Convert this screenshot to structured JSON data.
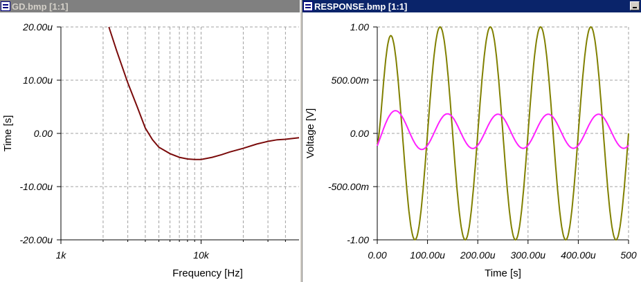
{
  "windows": [
    {
      "title": "GD.bmp [1:1]",
      "state": "inactive"
    },
    {
      "title": "RESPONSE.bmp [1:1]",
      "state": "active"
    }
  ],
  "colors": {
    "gd_curve": "#7a0a0a",
    "v1": "#808000",
    "v2": "#ff20ff",
    "grid": "#a0a0a0"
  },
  "chart_data": [
    {
      "type": "line",
      "xlabel": "Frequency [Hz]",
      "ylabel": "Time [s]",
      "xscale": "log",
      "xlim": [
        1000,
        50000
      ],
      "ylim": [
        -2e-05,
        2e-05
      ],
      "x_ticks": [
        "1k",
        "10k"
      ],
      "y_ticks": [
        "20.00u",
        "10.00u",
        "0.00",
        "-10.00u",
        "-20.00u"
      ],
      "grid": true,
      "series": [
        {
          "x": [
            2200,
            2500,
            3000,
            3500,
            4000,
            4500,
            5000,
            6000,
            7000,
            8000,
            9000,
            10000,
            12000,
            14000,
            16000,
            20000,
            25000,
            30000,
            35000,
            40000,
            50000
          ],
          "y": [
            2e-05,
            1.55e-05,
            9.5e-06,
            5e-06,
            1e-06,
            -1.2e-06,
            -2.6e-06,
            -3.8e-06,
            -4.5e-06,
            -4.8e-06,
            -4.9e-06,
            -4.9e-06,
            -4.5e-06,
            -4e-06,
            -3.5e-06,
            -2.8e-06,
            -2e-06,
            -1.5e-06,
            -1.2e-06,
            -1.1e-06,
            -8e-07
          ]
        }
      ]
    },
    {
      "type": "line",
      "xlabel": "Time [s]",
      "ylabel": "Voltage [V]",
      "xlim": [
        0,
        0.0005
      ],
      "ylim": [
        -1,
        1
      ],
      "x_ticks": [
        "0.00",
        "100.00u",
        "200.00u",
        "300.00u",
        "400.00u",
        "500"
      ],
      "y_ticks": [
        "1.00",
        "500.00m",
        "0.00",
        "-500.00m",
        "-1.00"
      ],
      "grid": true,
      "series": [
        {
          "frequency_hz": 10000,
          "amplitude": 1.0,
          "phase_deg": 0,
          "offset": 0,
          "start": -0.1,
          "attack_tau": 1e-05
        },
        {
          "frequency_hz": 10000,
          "amplitude": 0.16,
          "phase_deg": -55,
          "offset": 0.02,
          "start": 0,
          "transient_amp": 0.1,
          "transient_tau": 5e-05
        }
      ]
    }
  ]
}
